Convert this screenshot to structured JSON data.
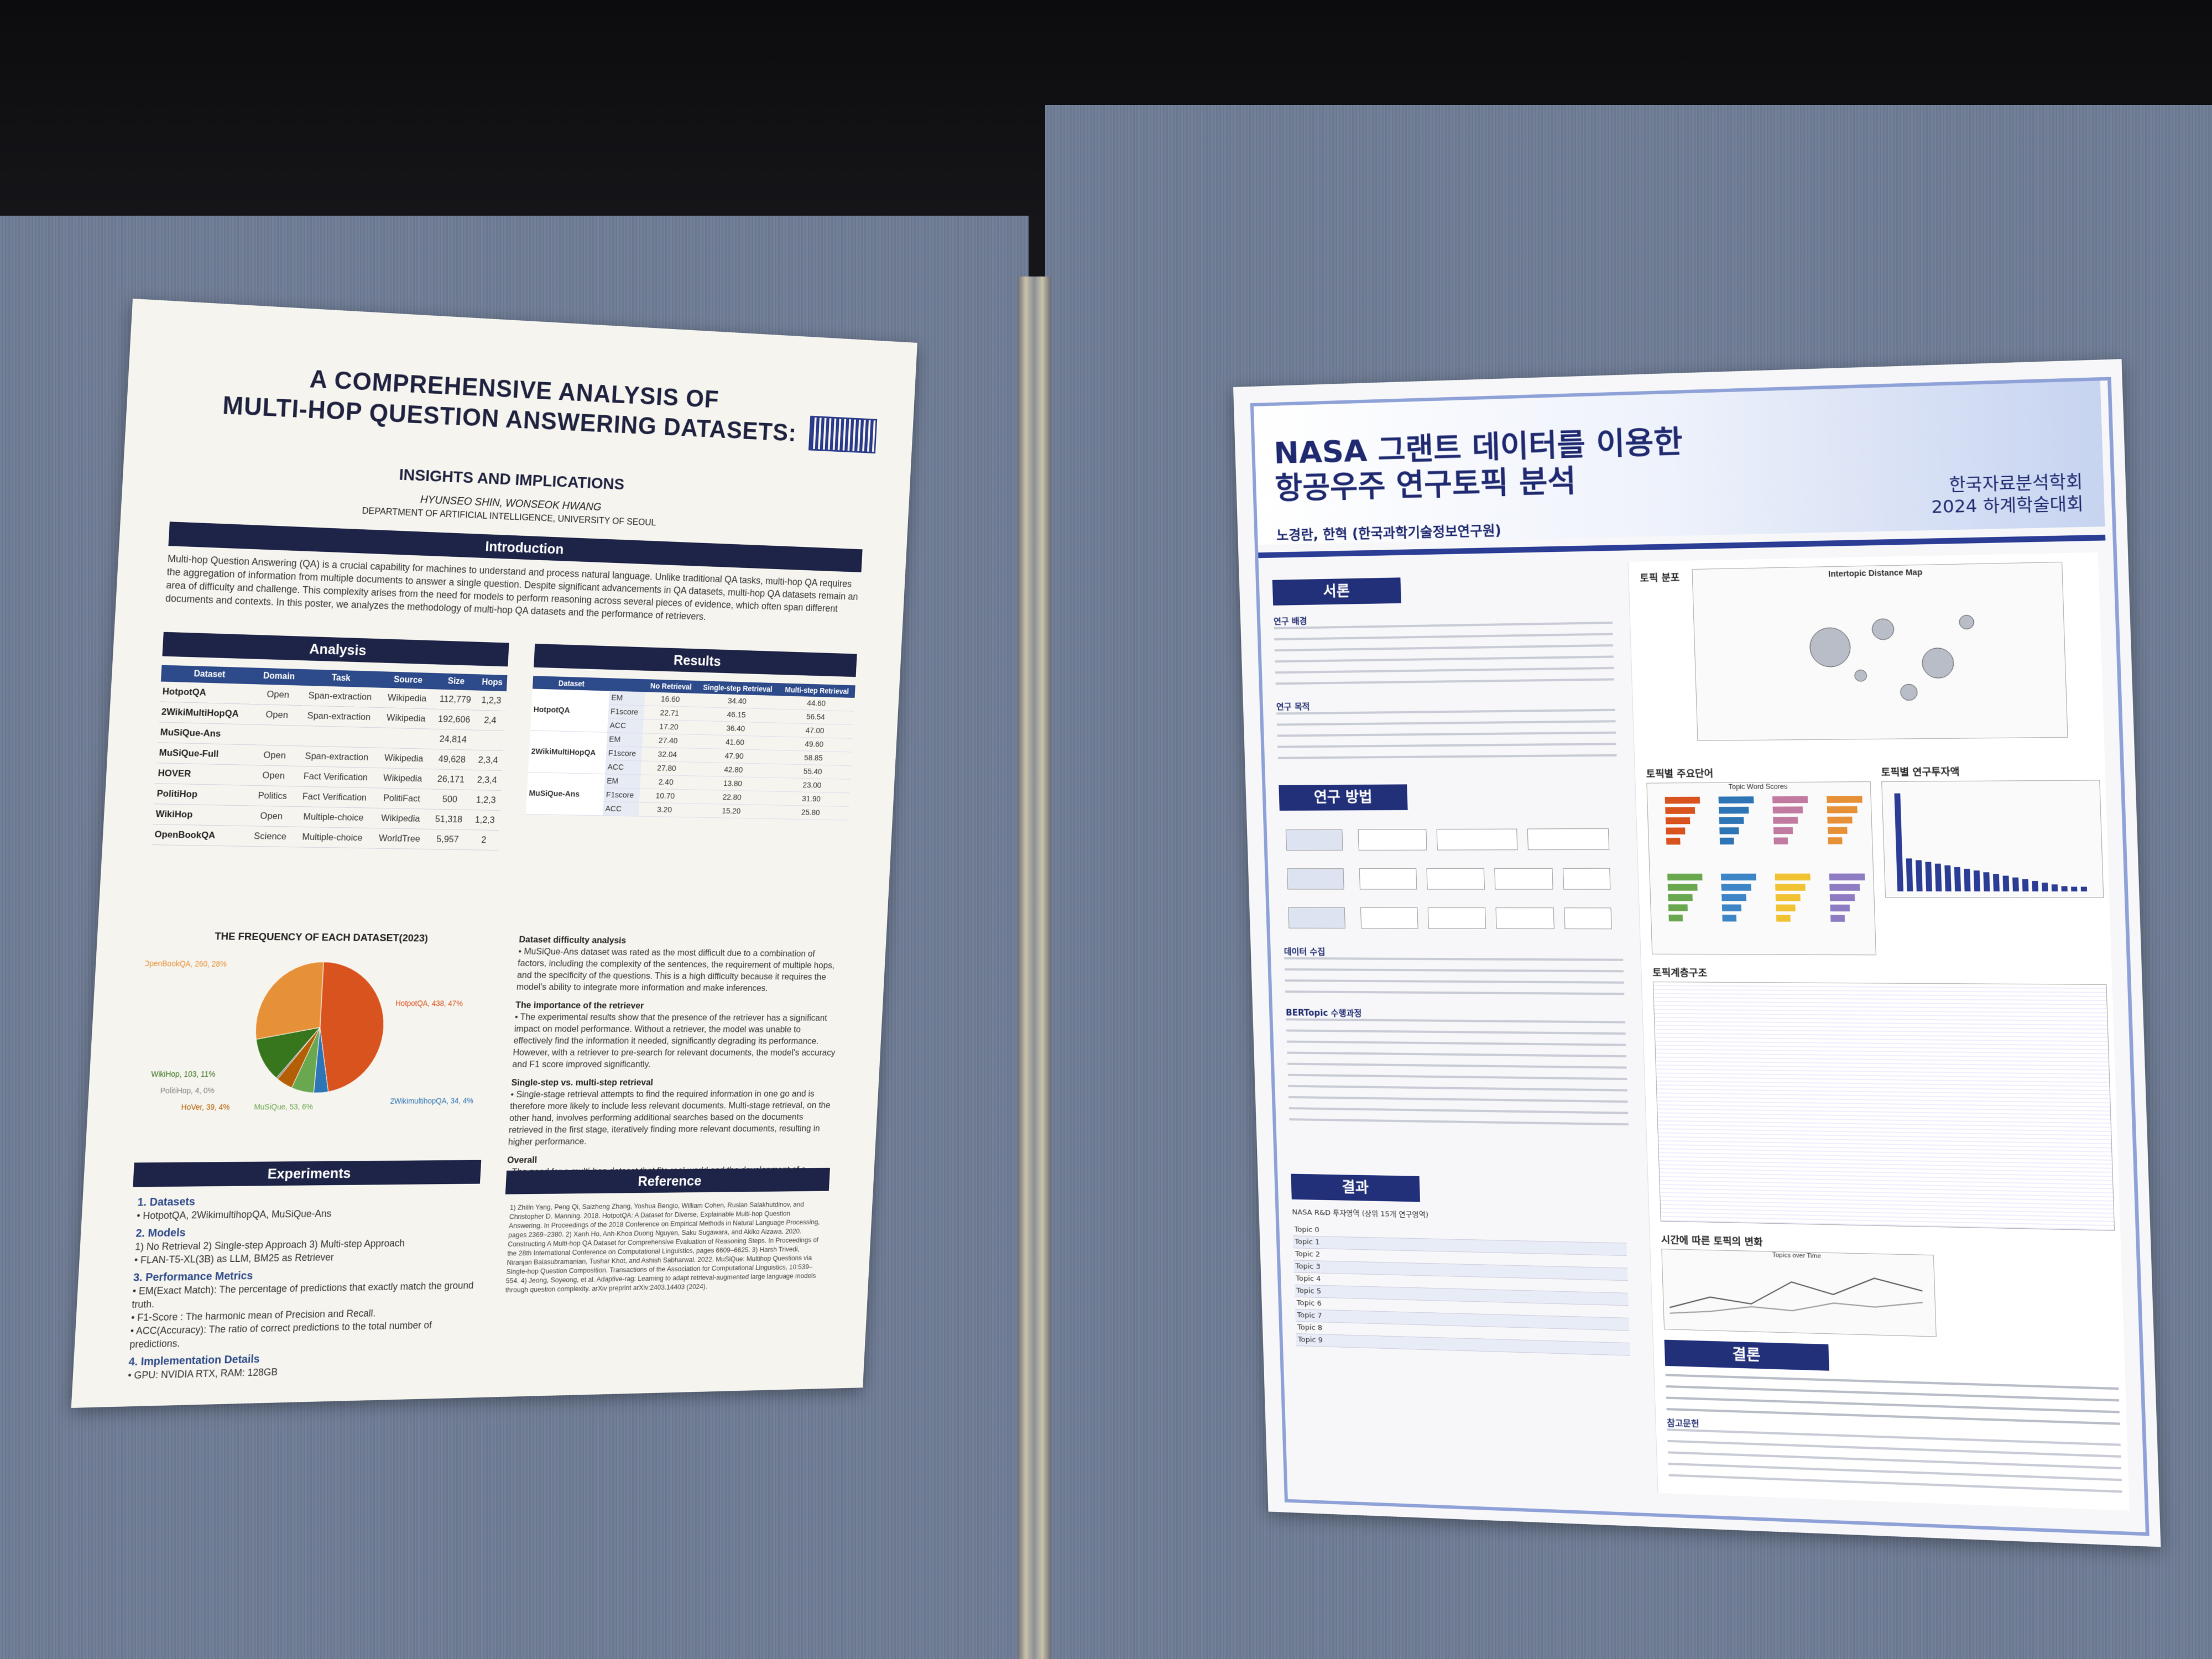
{
  "left_poster": {
    "title_line1": "A COMPREHENSIVE ANALYSIS OF",
    "title_line2": "MULTI-HOP QUESTION ANSWERING DATASETS:",
    "subtitle": "INSIGHTS AND IMPLICATIONS",
    "authors": "HYUNSEO SHIN, WONSEOK HWANG",
    "affiliation": "DEPARTMENT OF ARTIFICIAL INTELLIGENCE, UNIVERSITY OF SEOUL",
    "intro_header": "Introduction",
    "intro_text": "Multi-hop Question Answering (QA) is a crucial capability for machines to understand and process natural language. Unlike traditional QA tasks, multi-hop QA requires the aggregation of information from multiple documents to answer a single question. Despite significant advancements in QA datasets, multi-hop QA datasets remain an area of difficulty and challenge. This complexity arises from the need for models to perform reasoning across several pieces of evidence, which often span different documents and contexts. In this poster, we analyzes the methodology of multi-hop QA datasets and the performance of retrievers.",
    "analysis_header": "Analysis",
    "results_header": "Results",
    "dataset_table": {
      "headers": [
        "Dataset",
        "Domain",
        "Task",
        "Source",
        "Size",
        "Hops"
      ],
      "rows": [
        [
          "HotpotQA",
          "Open",
          "Span-extraction",
          "Wikipedia",
          "112,779",
          "1,2,3"
        ],
        [
          "2WikiMultiHopQA",
          "Open",
          "Span-extraction",
          "Wikipedia",
          "192,606",
          "2,4"
        ],
        [
          "MuSiQue-Ans",
          "",
          "",
          "",
          "24,814",
          ""
        ],
        [
          "MuSiQue-Full",
          "Open",
          "Span-extraction",
          "Wikipedia",
          "49,628",
          "2,3,4"
        ],
        [
          "HOVER",
          "Open",
          "Fact Verification",
          "Wikipedia",
          "26,171",
          "2,3,4"
        ],
        [
          "PolitiHop",
          "Politics",
          "Fact Verification",
          "PolitiFact",
          "500",
          "1,2,3"
        ],
        [
          "WikiHop",
          "Open",
          "Multiple-choice",
          "Wikipedia",
          "51,318",
          "1,2,3"
        ],
        [
          "OpenBookQA",
          "Science",
          "Multiple-choice",
          "WorldTree",
          "5,957",
          "2"
        ]
      ]
    },
    "results_table": {
      "headers": [
        "Dataset",
        "",
        "No Retrieval",
        "Single-step Retrieval",
        "Multi-step Retrieval"
      ],
      "groups": [
        {
          "name": "HotpotQA",
          "rows": [
            [
              "EM",
              "16.60",
              "34.40",
              "44.60"
            ],
            [
              "F1score",
              "22.71",
              "46.15",
              "56.54"
            ],
            [
              "ACC",
              "17.20",
              "36.40",
              "47.00"
            ]
          ]
        },
        {
          "name": "2WikiMultiHopQA",
          "rows": [
            [
              "EM",
              "27.40",
              "41.60",
              "49.60"
            ],
            [
              "F1score",
              "32.04",
              "47.90",
              "58.85"
            ],
            [
              "ACC",
              "27.80",
              "42.80",
              "55.40"
            ]
          ]
        },
        {
          "name": "MuSiQue-Ans",
          "rows": [
            [
              "EM",
              "2.40",
              "13.80",
              "23.00"
            ],
            [
              "F1score",
              "10.70",
              "22.80",
              "31.90"
            ],
            [
              "ACC",
              "3.20",
              "15.20",
              "25.80"
            ]
          ]
        }
      ]
    },
    "pie_title": "THE FREQUENCY OF EACH DATASET(2023)",
    "difficulty_head": "Dataset difficulty analysis",
    "difficulty_text": "• MuSiQue-Ans dataset was rated as the most difficult due to a combination of factors, including the complexity of the sentences, the requirement of multiple hops, and the specificity of the questions. This is a high difficulty because it requires the model's ability to integrate more information and make inferences.",
    "retriever_head": "The importance of the retriever",
    "retriever_text": "• The experimental results show that the presence of the retriever has a significant impact on model performance. Without a retriever, the model was unable to effectively find the information it needed, significantly degrading its performance. However, with a retriever to pre-search for relevant documents, the model's accuracy and F1 score improved significantly.",
    "single_multi_head": "Single-step vs. multi-step retrieval",
    "single_multi_text": "• Single-stage retrieval attempts to find the required information in one go and is therefore more likely to include less relevant documents. Multi-stage retrieval, on the other hand, involves performing additional searches based on the documents retrieved in the first stage, iteratively finding more relevant documents, resulting in higher performance.",
    "overall_head": "Overall",
    "overall_text": "• The need for a multi-hop dataset that fits real-world and the development of a retriever-reader structure seems to be necessary.",
    "experiments_header": "Experiments",
    "exp_datasets_head": "1. Datasets",
    "exp_datasets_text": "• HotpotQA, 2WikimultihopQA, MuSiQue-Ans",
    "exp_models_head": "2. Models",
    "exp_models_text1": "1) No Retrieval 2) Single-step Approach 3) Multi-step Approach",
    "exp_models_text2": "• FLAN-T5-XL(3B) as LLM, BM25 as Retriever",
    "exp_metrics_head": "3. Performance Metrics",
    "exp_metrics_text1": "• EM(Exact Match): The percentage of predictions that exactly match the ground truth.",
    "exp_metrics_text2": "• F1-Score : The harmonic mean of Precision and Recall.",
    "exp_metrics_text3": "• ACC(Accuracy): The ratio of correct predictions to the total number of predictions.",
    "exp_impl_head": "4. Implementation Details",
    "exp_impl_text": "• GPU: NVIDIA RTX, RAM: 128GB",
    "reference_header": "Reference",
    "references": "1) Zhilin Yang, Peng Qi, Saizheng Zhang, Yoshua Bengio, William Cohen, Ruslan Salakhutdinov, and Christopher D. Manning. 2018. HotpotQA: A Dataset for Diverse, Explainable Multi-hop Question Answering. In Proceedings of the 2018 Conference on Empirical Methods in Natural Language Processing, pages 2369–2380. 2) Xanh Ho, Anh-Khoa Duong Nguyen, Saku Sugawara, and Akiko Aizawa. 2020. Constructing A Multi-hop QA Dataset for Comprehensive Evaluation of Reasoning Steps. In Proceedings of the 28th International Conference on Computational Linguistics, pages 6609–6625. 3) Harsh Trivedi, Niranjan Balasubramanian, Tushar Khot, and Ashish Sabharwal. 2022. MuSiQue: Multihop Questions via Single-hop Question Composition. Transactions of the Association for Computational Linguistics, 10:539–554. 4) Jeong, Soyeong, et al. Adaptive-rag: Learning to adapt retrieval-augmented large language models through question complexity. arXiv preprint arXiv:2403.14403 (2024)."
  },
  "chart_data": {
    "type": "pie",
    "title": "THE FREQUENCY OF EACH DATASET(2023)",
    "slices": [
      {
        "label": "HotpotQA, 438, 47%",
        "value": 438,
        "color": "#d9531e"
      },
      {
        "label": "2WikimultihopQA, 34, 4%",
        "value": 34,
        "color": "#2e75b6"
      },
      {
        "label": "MuSiQue, 53, 6%",
        "value": 53,
        "color": "#6aa84f"
      },
      {
        "label": "HoVer, 39, 4%",
        "value": 39,
        "color": "#b45f06"
      },
      {
        "label": "PolitiHop, 4, 0%",
        "value": 4,
        "color": "#7f7f7f"
      },
      {
        "label": "WikiHop, 103, 11%",
        "value": 103,
        "color": "#38761d"
      },
      {
        "label": "OpenBookQA, 260, 28%",
        "value": 260,
        "color": "#e69138"
      }
    ]
  },
  "right_poster": {
    "title_line1": "NASA 그랜트 데이터를 이용한",
    "title_line2": "항공우주 연구토픽 분석",
    "authors": "노경란, 한혁 (한국과학기술정보연구원)",
    "conf_line1": "한국자료분석학회",
    "conf_line2": "2024 하계학술대회",
    "sec_intro": "서론",
    "sec_method": "연구 방법",
    "sec_results": "결과",
    "sec_conclusion": "결론",
    "background_head": "연구 배경",
    "purpose_head": "연구 목적",
    "data_head": "데이터 수집",
    "bertopic_head": "BERTopic 수행과정",
    "references_head": "참고문헌",
    "fig_topic_dist": "토픽 분포",
    "fig_distance_map": "Intertopic Distance Map",
    "fig_keywords": "토픽별 주요단어",
    "fig_topic_word_scores": "Topic Word Scores",
    "fig_funding": "토픽별 연구투자액",
    "fig_hierarchy": "토픽계층구조",
    "fig_time": "시간에 따른 토픽의 변화",
    "fig_time_sub": "Topics over Time",
    "results_table_caption": "NASA R&D 투자영역 (상위 15개 연구영역)",
    "results_rows": [
      "Topic 0",
      "Topic 1",
      "Topic 2",
      "Topic 3",
      "Topic 4",
      "Topic 5",
      "Topic 6",
      "Topic 7",
      "Topic 8",
      "Topic 9"
    ]
  }
}
